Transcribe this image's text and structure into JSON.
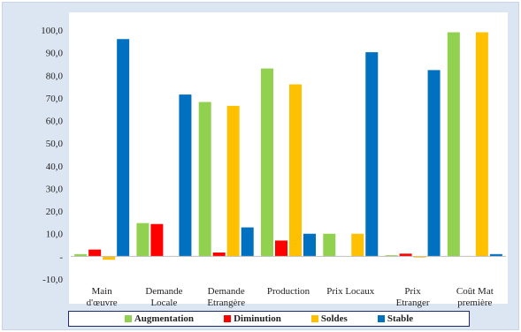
{
  "chart_data": {
    "type": "bar",
    "categories": [
      [
        "Main",
        "d'œuvre"
      ],
      [
        "Demande",
        "Locale"
      ],
      [
        "Demande",
        "Etrangère"
      ],
      [
        "Production"
      ],
      [
        "Prix Locaux"
      ],
      [
        "Prix",
        "Etranger"
      ],
      [
        "Coût Mat",
        "première"
      ]
    ],
    "series": [
      {
        "name": "Augmentation",
        "color": "#92d050",
        "values": [
          1.0,
          14.7,
          68.2,
          83.0,
          10.0,
          0.5,
          99.0
        ]
      },
      {
        "name": "Diminution",
        "color": "#ff0000",
        "values": [
          3.0,
          14.3,
          1.7,
          7.0,
          0.0,
          1.2,
          0.0
        ]
      },
      {
        "name": "Soldes",
        "color": "#ffc000",
        "values": [
          -1.5,
          0.0,
          66.5,
          76.0,
          10.0,
          -0.5,
          99.0
        ]
      },
      {
        "name": "Stable",
        "color": "#0070c0",
        "values": [
          96.0,
          71.5,
          12.8,
          10.0,
          90.2,
          82.3,
          1.0
        ]
      }
    ],
    "yticks": [
      -10,
      0,
      10,
      20,
      30,
      40,
      50,
      60,
      70,
      80,
      90,
      100
    ],
    "ytick_labels": [
      "-10,0",
      "-",
      "10,0",
      "20,0",
      "30,0",
      "40,0",
      "50,0",
      "60,0",
      "70,0",
      "80,0",
      "90,0",
      "100,0"
    ],
    "ylim": [
      -10,
      100
    ],
    "grid": false,
    "legend_position": "bottom"
  }
}
